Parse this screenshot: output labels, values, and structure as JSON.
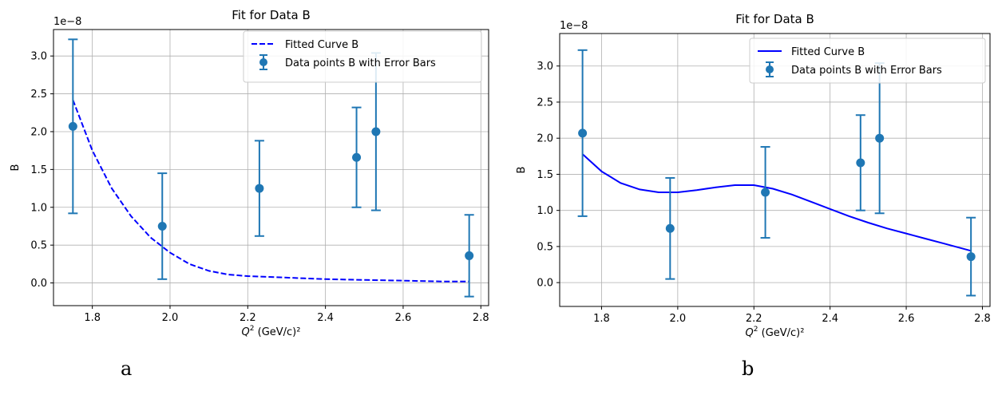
{
  "chart_data": [
    {
      "type": "scatter",
      "panel_label": "a",
      "title": "Fit for Data B",
      "xlabel": "Q² (GeV/c)²",
      "ylabel": "B",
      "offset_text": "1e−8",
      "xlim": [
        1.7,
        2.82
      ],
      "ylim": [
        -0.3,
        3.35
      ],
      "xticks": [
        1.8,
        2.0,
        2.2,
        2.4,
        2.6,
        2.8
      ],
      "xtick_labels": [
        "1.8",
        "2.0",
        "2.2",
        "2.4",
        "2.6",
        "2.8"
      ],
      "yticks": [
        0.0,
        0.5,
        1.0,
        1.5,
        2.0,
        2.5,
        3.0
      ],
      "ytick_labels": [
        "0.0",
        "0.5",
        "1.0",
        "1.5",
        "2.0",
        "2.5",
        "3.0"
      ],
      "grid": true,
      "legend_position": "top-right",
      "series": [
        {
          "name": "Fitted Curve B",
          "kind": "line",
          "style": "dashed",
          "color": "#0000ff",
          "x": [
            1.75,
            1.8,
            1.85,
            1.9,
            1.95,
            2.0,
            2.05,
            2.1,
            2.15,
            2.2,
            2.3,
            2.4,
            2.5,
            2.6,
            2.7,
            2.77
          ],
          "y": [
            2.42,
            1.75,
            1.25,
            0.88,
            0.6,
            0.4,
            0.25,
            0.16,
            0.11,
            0.09,
            0.07,
            0.05,
            0.04,
            0.03,
            0.02,
            0.02
          ]
        },
        {
          "name": "Data points B with Error Bars",
          "kind": "errorbar",
          "color": "#1f77b4",
          "x": [
            1.75,
            1.98,
            2.23,
            2.48,
            2.53,
            2.77
          ],
          "y": [
            2.07,
            0.75,
            1.25,
            1.66,
            2.0,
            0.36
          ],
          "yerr": [
            1.15,
            0.7,
            0.63,
            0.66,
            1.04,
            0.54
          ]
        }
      ]
    },
    {
      "type": "scatter",
      "panel_label": "b",
      "title": "Fit for Data B",
      "xlabel": "Q² (GeV/c)²",
      "ylabel": "B",
      "offset_text": "1e−8",
      "xlim": [
        1.69,
        2.82
      ],
      "ylim": [
        -0.33,
        3.45
      ],
      "xticks": [
        1.8,
        2.0,
        2.2,
        2.4,
        2.6,
        2.8
      ],
      "xtick_labels": [
        "1.8",
        "2.0",
        "2.2",
        "2.4",
        "2.6",
        "2.8"
      ],
      "yticks": [
        0.0,
        0.5,
        1.0,
        1.5,
        2.0,
        2.5,
        3.0
      ],
      "ytick_labels": [
        "0.0",
        "0.5",
        "1.0",
        "1.5",
        "2.0",
        "2.5",
        "3.0"
      ],
      "grid": true,
      "legend_position": "top-right",
      "series": [
        {
          "name": "Fitted Curve B",
          "kind": "line",
          "style": "solid",
          "color": "#0000ff",
          "x": [
            1.75,
            1.8,
            1.85,
            1.9,
            1.95,
            2.0,
            2.05,
            2.1,
            2.15,
            2.2,
            2.25,
            2.3,
            2.35,
            2.4,
            2.45,
            2.5,
            2.55,
            2.6,
            2.65,
            2.7,
            2.77
          ],
          "y": [
            1.78,
            1.54,
            1.38,
            1.29,
            1.25,
            1.25,
            1.28,
            1.32,
            1.35,
            1.35,
            1.3,
            1.22,
            1.12,
            1.02,
            0.92,
            0.83,
            0.75,
            0.68,
            0.61,
            0.54,
            0.44
          ]
        },
        {
          "name": "Data points B with Error Bars",
          "kind": "errorbar",
          "color": "#1f77b4",
          "x": [
            1.75,
            1.98,
            2.23,
            2.48,
            2.53,
            2.77
          ],
          "y": [
            2.07,
            0.75,
            1.25,
            1.66,
            2.0,
            0.36
          ],
          "yerr": [
            1.15,
            0.7,
            0.63,
            0.66,
            1.04,
            0.54
          ]
        }
      ]
    }
  ]
}
